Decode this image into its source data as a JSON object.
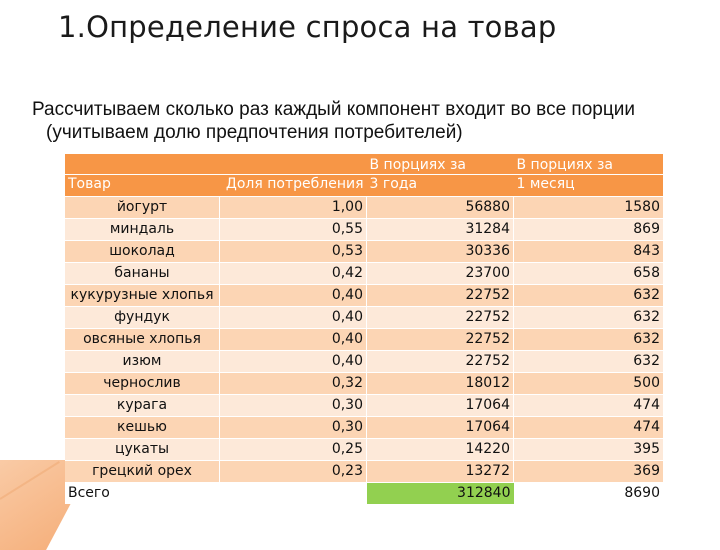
{
  "title": "1.Определение спроса на товар",
  "bullet": "Рассчитываем сколько раз каждый компонент входит во все порции (учитываем долю предпочтения потребителей)",
  "table": {
    "headers": {
      "name": "Товар",
      "share": "Доля потребления",
      "portions_3y_line1": "В порциях за",
      "portions_3y_line2": "3 года",
      "portions_1m_line1": "В порциях за",
      "portions_1m_line2": "1 месяц"
    },
    "rows": [
      {
        "name": "йогурт",
        "share": "1,00",
        "p3y": "56880",
        "p1m": "1580"
      },
      {
        "name": "миндаль",
        "share": "0,55",
        "p3y": "31284",
        "p1m": "869"
      },
      {
        "name": "шоколад",
        "share": "0,53",
        "p3y": "30336",
        "p1m": "843"
      },
      {
        "name": "бананы",
        "share": "0,42",
        "p3y": "23700",
        "p1m": "658"
      },
      {
        "name": "кукурузные хлопья",
        "share": "0,40",
        "p3y": "22752",
        "p1m": "632"
      },
      {
        "name": "фундук",
        "share": "0,40",
        "p3y": "22752",
        "p1m": "632"
      },
      {
        "name": "овсяные хлопья",
        "share": "0,40",
        "p3y": "22752",
        "p1m": "632"
      },
      {
        "name": "изюм",
        "share": "0,40",
        "p3y": "22752",
        "p1m": "632"
      },
      {
        "name": "чернослив",
        "share": "0,32",
        "p3y": "18012",
        "p1m": "500"
      },
      {
        "name": "курага",
        "share": "0,30",
        "p3y": "17064",
        "p1m": "474"
      },
      {
        "name": "кешью",
        "share": "0,30",
        "p3y": "17064",
        "p1m": "474"
      },
      {
        "name": "цукаты",
        "share": "0,25",
        "p3y": "14220",
        "p1m": "395"
      },
      {
        "name": "грецкий орех",
        "share": "0,23",
        "p3y": "13272",
        "p1m": "369"
      }
    ],
    "total": {
      "label": "Всего",
      "p3y": "312840",
      "p1m": "8690"
    }
  },
  "colors": {
    "header_bg": "#f79646",
    "row_dark": "#fcd5b4",
    "row_light": "#fde9d9",
    "total_highlight": "#92d050"
  }
}
